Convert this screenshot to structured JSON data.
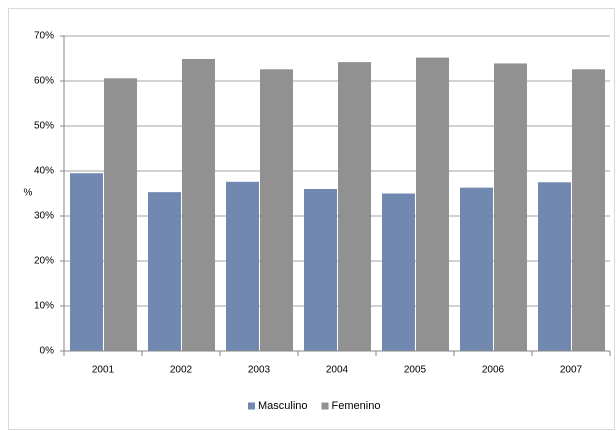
{
  "chart_data": {
    "type": "bar",
    "y_label": "%",
    "categories": [
      "2001",
      "2002",
      "2003",
      "2004",
      "2005",
      "2006",
      "2007"
    ],
    "series": [
      {
        "name": "Masculino",
        "color": "#7189b0",
        "values": [
          39.5,
          35.3,
          37.6,
          36.0,
          35.0,
          36.3,
          37.5
        ]
      },
      {
        "name": "Femenino",
        "color": "#919191",
        "values": [
          60.6,
          64.9,
          62.6,
          64.2,
          65.2,
          63.9,
          62.6
        ]
      }
    ],
    "ylim": [
      0,
      70
    ],
    "yticks": [
      {
        "value": 0,
        "label": "0%"
      },
      {
        "value": 10,
        "label": "10%"
      },
      {
        "value": 20,
        "label": "20%"
      },
      {
        "value": 30,
        "label": "30%"
      },
      {
        "value": 40,
        "label": "40%"
      },
      {
        "value": 50,
        "label": "50%"
      },
      {
        "value": 60,
        "label": "60%"
      },
      {
        "value": 70,
        "label": "70%"
      }
    ],
    "grid": true,
    "legend": "bottom"
  }
}
